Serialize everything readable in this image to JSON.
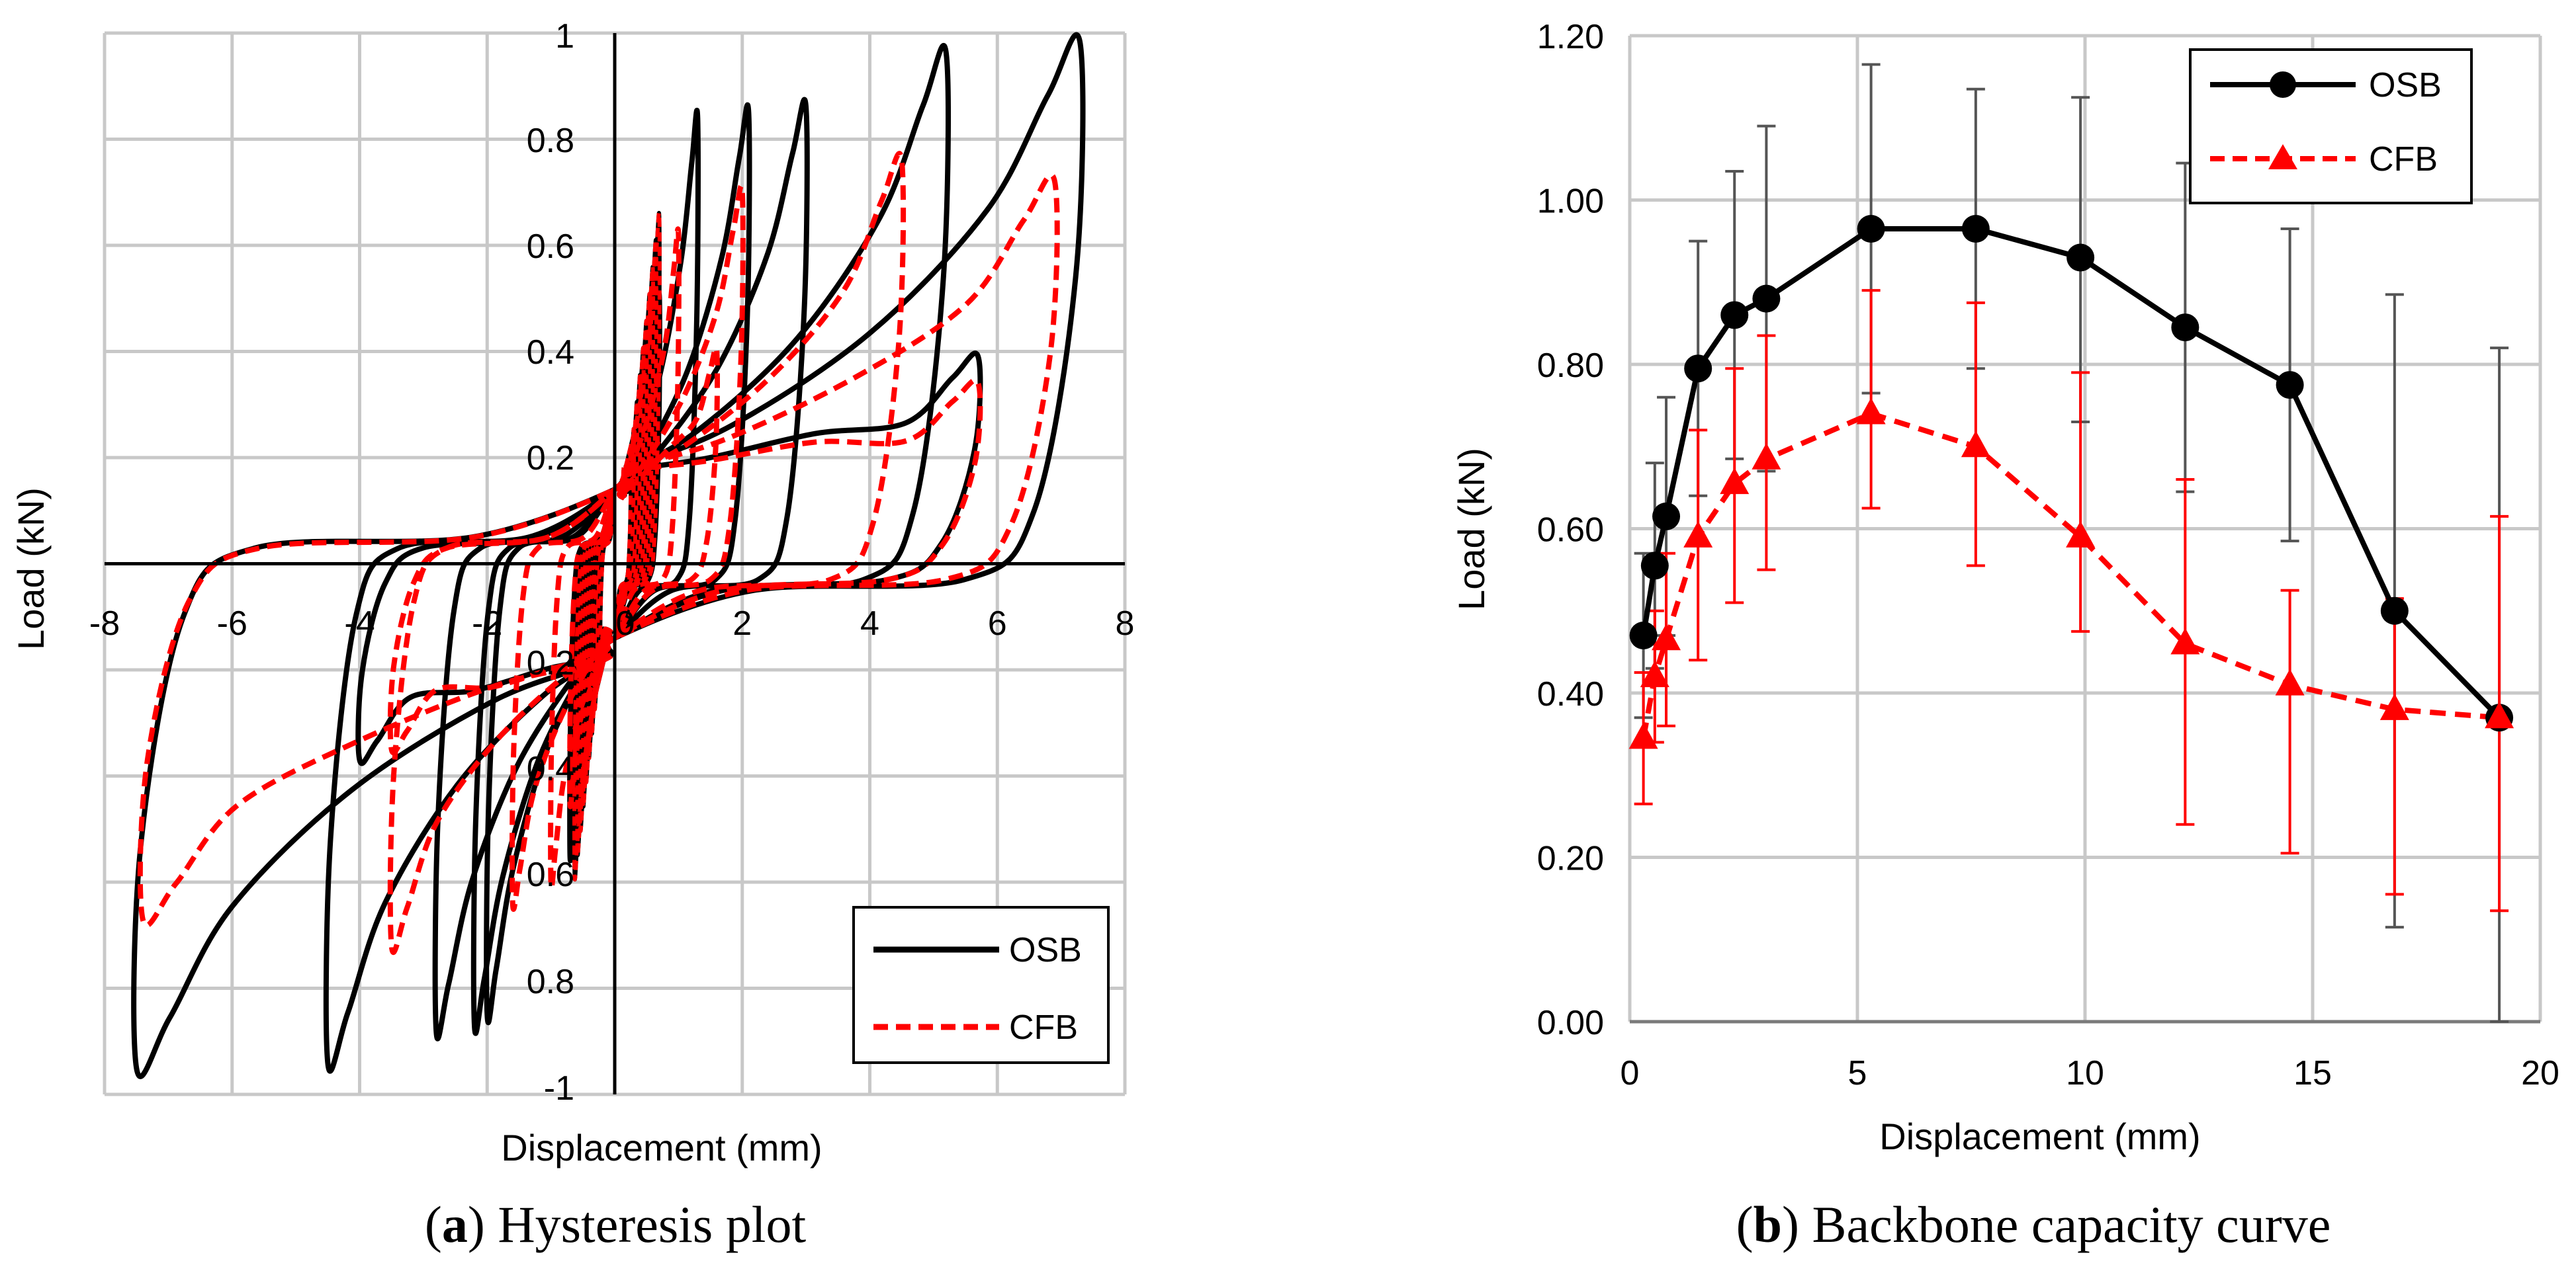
{
  "chart_data": [
    {
      "id": "a",
      "type": "line",
      "caption_prefix": "(",
      "caption_letter": "a",
      "caption_suffix": ") Hysteresis plot",
      "xlabel": "Displacement (mm)",
      "ylabel": "Load (kN)",
      "xlim": [
        -8,
        8
      ],
      "ylim": [
        -1,
        1
      ],
      "x_ticks": [
        "-8",
        "-6",
        "-4",
        "-2",
        "0",
        "2",
        "4",
        "6",
        "8"
      ],
      "y_ticks": [
        "-1",
        "0.8",
        "0.6",
        "0.4",
        "0.2",
        "0.2",
        "0.4",
        "0.6",
        "0.8",
        "1"
      ],
      "grid": true,
      "legend_position": "bottom-right",
      "series": [
        {
          "name": "OSB",
          "color": "#000000",
          "style": "solid",
          "loops": [
            [
              1.3,
              0.84,
              2.0,
              0.85
            ],
            [
              2.1,
              0.85,
              2.2,
              0.87
            ],
            [
              3.0,
              0.86,
              2.8,
              0.88
            ],
            [
              5.2,
              0.96,
              4.5,
              0.94
            ],
            [
              7.3,
              0.98,
              7.5,
              0.95
            ],
            [
              5.7,
              0.39,
              4.0,
              0.37
            ],
            [
              0.7,
              0.5,
              0.7,
              0.55
            ]
          ]
        },
        {
          "name": "CFB",
          "color": "#ff0000",
          "style": "dashed",
          "loops": [
            [
              1.0,
              0.62,
              1.0,
              0.6
            ],
            [
              2.0,
              0.7,
              1.6,
              0.64
            ],
            [
              4.5,
              0.76,
              3.5,
              0.72
            ],
            [
              6.9,
              0.72,
              7.4,
              0.67
            ],
            [
              5.7,
              0.34,
              3.5,
              0.35
            ],
            [
              1.6,
              0.4,
              0.7,
              0.45
            ]
          ]
        }
      ]
    },
    {
      "id": "b",
      "type": "line",
      "caption_prefix": "(",
      "caption_letter": "b",
      "caption_suffix": ") Backbone capacity curve",
      "xlabel": "Displacement (mm)",
      "ylabel": "Load (kN)",
      "xlim": [
        0,
        20
      ],
      "ylim": [
        0,
        1.2
      ],
      "x_ticks": [
        "0",
        "5",
        "10",
        "15",
        "20"
      ],
      "y_ticks": [
        "0.00",
        "0.20",
        "0.40",
        "0.60",
        "0.80",
        "1.00",
        "1.20"
      ],
      "grid": true,
      "legend_position": "top-right",
      "series": [
        {
          "name": "OSB",
          "color": "#000000",
          "style": "solid",
          "marker": "circle",
          "x": [
            0.3,
            0.55,
            0.8,
            1.5,
            2.3,
            3.0,
            5.3,
            7.6,
            9.9,
            12.2,
            14.5,
            16.8,
            19.1
          ],
          "y": [
            0.47,
            0.555,
            0.615,
            0.795,
            0.86,
            0.88,
            0.965,
            0.965,
            0.93,
            0.845,
            0.775,
            0.5,
            0.37
          ],
          "high": [
            0.57,
            0.68,
            0.76,
            0.95,
            1.035,
            1.09,
            1.165,
            1.135,
            1.125,
            1.045,
            0.965,
            0.885,
            0.82
          ],
          "low": [
            0.37,
            0.43,
            0.47,
            0.64,
            0.685,
            0.67,
            0.765,
            0.795,
            0.73,
            0.645,
            0.585,
            0.115,
            0.0
          ]
        },
        {
          "name": "CFB",
          "color": "#ff0000",
          "style": "dashed",
          "marker": "triangle",
          "x": [
            0.3,
            0.55,
            0.8,
            1.5,
            2.3,
            3.0,
            5.3,
            7.6,
            9.9,
            12.2,
            14.5,
            16.8,
            19.1
          ],
          "y": [
            0.345,
            0.42,
            0.465,
            0.59,
            0.655,
            0.685,
            0.74,
            0.7,
            0.59,
            0.46,
            0.41,
            0.38,
            0.37
          ],
          "high": [
            0.425,
            0.5,
            0.57,
            0.72,
            0.795,
            0.835,
            0.89,
            0.875,
            0.79,
            0.66,
            0.525,
            0.515,
            0.615
          ],
          "low": [
            0.265,
            0.34,
            0.36,
            0.44,
            0.51,
            0.55,
            0.625,
            0.555,
            0.475,
            0.24,
            0.205,
            0.155,
            0.135
          ]
        }
      ]
    }
  ]
}
